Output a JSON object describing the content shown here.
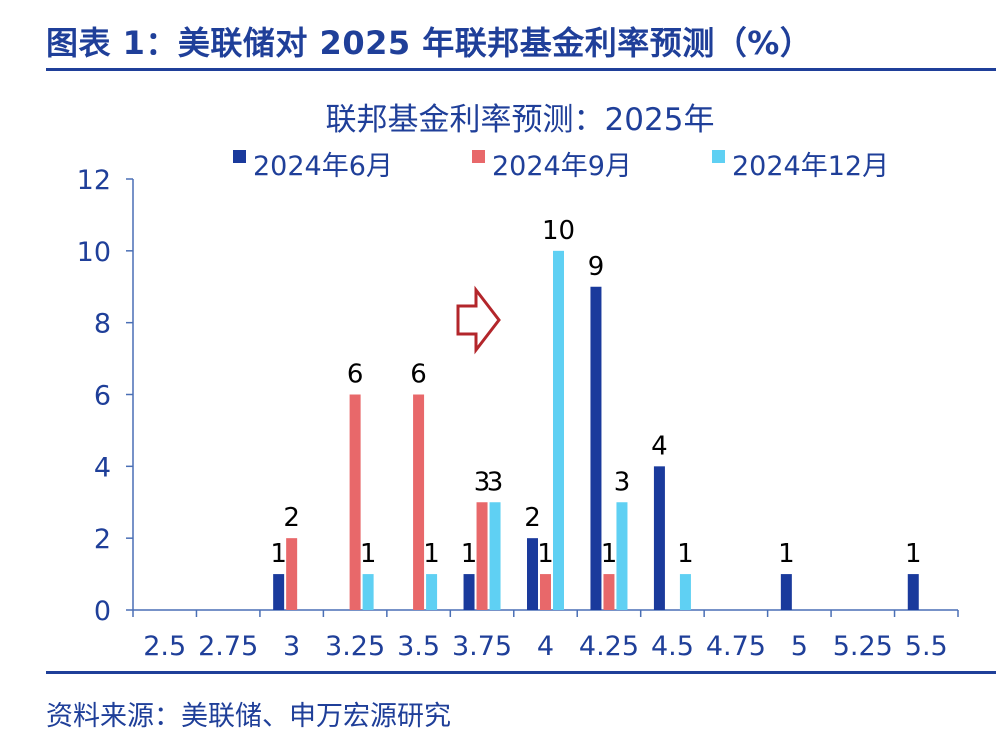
{
  "figure": {
    "title": "图表 1：美联储对 2025 年联邦基金利率预测（%）",
    "source": "资料来源：美联储、申万宏源研究"
  },
  "chart_data": {
    "type": "bar",
    "title": "联邦基金利率预测：2025年",
    "xlabel": "",
    "ylabel": "",
    "categories": [
      "2.5",
      "2.75",
      "3",
      "3.25",
      "3.5",
      "3.75",
      "4",
      "4.25",
      "4.5",
      "4.75",
      "5",
      "5.25",
      "5.5"
    ],
    "ylim": [
      0,
      12
    ],
    "yticks": [
      0,
      2,
      4,
      6,
      8,
      10,
      12
    ],
    "grid": false,
    "legend_position": "top",
    "series": [
      {
        "name": "2024年6月",
        "color": "#1a3a9c",
        "values": [
          0,
          0,
          1,
          0,
          0,
          1,
          2,
          9,
          4,
          0,
          1,
          0,
          1
        ]
      },
      {
        "name": "2024年9月",
        "color": "#e8686a",
        "values": [
          0,
          0,
          2,
          6,
          6,
          3,
          1,
          1,
          0,
          0,
          0,
          0,
          0
        ]
      },
      {
        "name": "2024年12月",
        "color": "#5fd0f3",
        "values": [
          0,
          0,
          0,
          1,
          1,
          3,
          10,
          3,
          1,
          0,
          0,
          0,
          0
        ]
      }
    ],
    "annotations": [
      {
        "type": "arrow",
        "direction": "right",
        "color": "#b3262b",
        "description": "hollow right arrow marking shift"
      }
    ]
  }
}
